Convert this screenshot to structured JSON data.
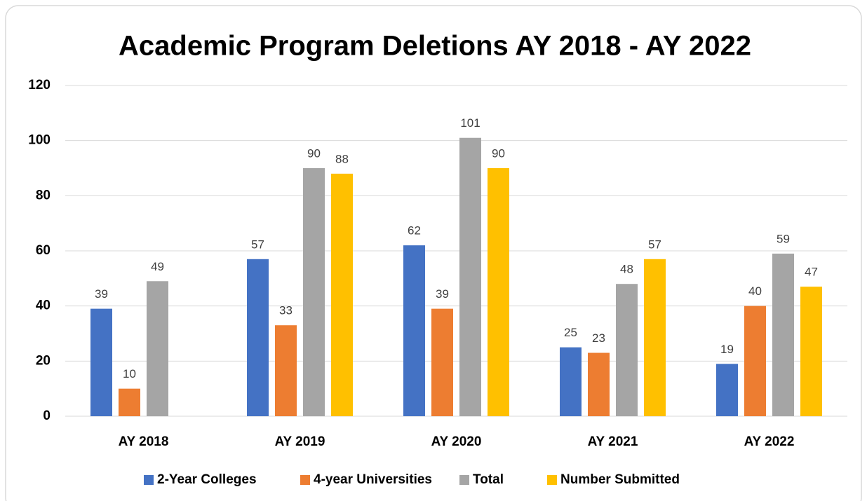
{
  "chart_data": {
    "type": "bar",
    "title": "Academic Program Deletions AY 2018 - AY 2022",
    "categories": [
      "AY 2018",
      "AY 2019",
      "AY 2020",
      "AY 2021",
      "AY 2022"
    ],
    "series": [
      {
        "name": "2-Year Colleges",
        "color": "#4472c4",
        "values": [
          39,
          57,
          62,
          25,
          19
        ]
      },
      {
        "name": "4-year Universities",
        "color": "#ed7d31",
        "values": [
          10,
          33,
          39,
          23,
          40
        ]
      },
      {
        "name": "Total",
        "color": "#a5a5a5",
        "values": [
          49,
          90,
          101,
          48,
          59
        ]
      },
      {
        "name": "Number Submitted",
        "color": "#ffc000",
        "values": [
          null,
          88,
          90,
          57,
          47
        ]
      }
    ],
    "ylim": [
      0,
      120
    ],
    "yticks": [
      0,
      20,
      40,
      60,
      80,
      100,
      120
    ],
    "grid": true,
    "legend": "bottom"
  }
}
